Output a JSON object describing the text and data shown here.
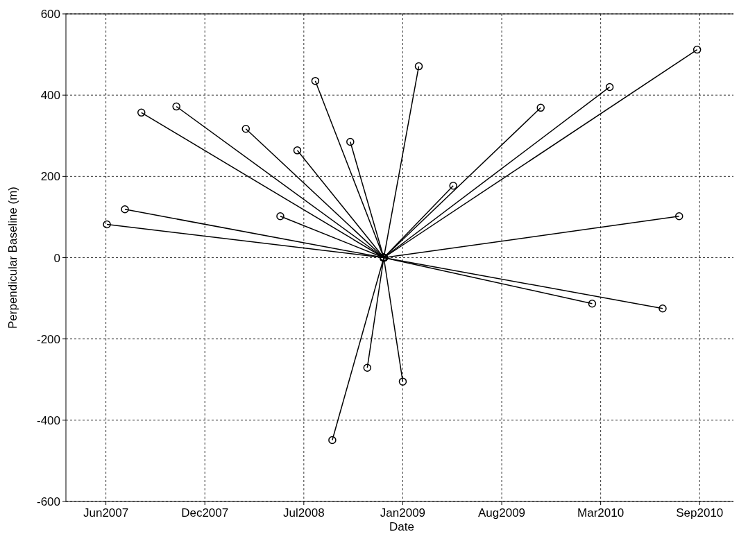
{
  "chart_data": {
    "type": "line",
    "xlabel": "Date",
    "ylabel": "Perpendicular Baseline (m)",
    "xlim": [
      "2007-03-27",
      "2010-11-30"
    ],
    "xticks": [
      {
        "value": "2007-06-15",
        "label": "Jun2007"
      },
      {
        "value": "2007-12-30",
        "label": "Dec2007"
      },
      {
        "value": "2008-07-15",
        "label": "Jul2008"
      },
      {
        "value": "2009-01-29",
        "label": "Jan2009"
      },
      {
        "value": "2009-08-15",
        "label": "Aug2009"
      },
      {
        "value": "2010-03-01",
        "label": "Mar2010"
      },
      {
        "value": "2010-09-15",
        "label": "Sep2010"
      }
    ],
    "ylim": [
      -600,
      600
    ],
    "yticks": [
      -600,
      -400,
      -200,
      0,
      200,
      400,
      600
    ],
    "grid": true,
    "marker": "circle",
    "line_style": "solid",
    "series": [
      {
        "color": "#000000",
        "x": [
          "2008-12-22",
          "2007-06-17"
        ],
        "values": [
          0,
          82
        ]
      },
      {
        "color": "#000000",
        "x": [
          "2008-12-22",
          "2007-07-23"
        ],
        "values": [
          0,
          119
        ]
      },
      {
        "color": "#000000",
        "x": [
          "2008-12-22",
          "2007-08-25"
        ],
        "values": [
          0,
          357
        ]
      },
      {
        "color": "#000000",
        "x": [
          "2008-12-22",
          "2007-11-03"
        ],
        "values": [
          0,
          372
        ]
      },
      {
        "color": "#000000",
        "x": [
          "2008-12-22",
          "2008-03-21"
        ],
        "values": [
          0,
          317
        ]
      },
      {
        "color": "#000000",
        "x": [
          "2008-12-22",
          "2008-05-29"
        ],
        "values": [
          0,
          102
        ]
      },
      {
        "color": "#000000",
        "x": [
          "2008-12-22",
          "2008-07-02"
        ],
        "values": [
          0,
          264
        ]
      },
      {
        "color": "#000000",
        "x": [
          "2008-12-22",
          "2008-08-07"
        ],
        "values": [
          0,
          435
        ]
      },
      {
        "color": "#000000",
        "x": [
          "2008-12-22",
          "2008-09-10"
        ],
        "values": [
          0,
          -449
        ]
      },
      {
        "color": "#000000",
        "x": [
          "2008-12-22",
          "2008-10-16"
        ],
        "values": [
          0,
          285
        ]
      },
      {
        "color": "#000000",
        "x": [
          "2008-12-22",
          "2008-11-19"
        ],
        "values": [
          0,
          -271
        ]
      },
      {
        "color": "#000000",
        "x": [
          "2008-12-22",
          "2009-01-29"
        ],
        "values": [
          0,
          -305
        ]
      },
      {
        "color": "#000000",
        "x": [
          "2008-12-22",
          "2009-03-02"
        ],
        "values": [
          0,
          471
        ]
      },
      {
        "color": "#000000",
        "x": [
          "2008-12-22",
          "2009-05-10"
        ],
        "values": [
          0,
          177
        ]
      },
      {
        "color": "#000000",
        "x": [
          "2008-12-22",
          "2009-11-01"
        ],
        "values": [
          0,
          369
        ]
      },
      {
        "color": "#000000",
        "x": [
          "2008-12-22",
          "2010-02-12"
        ],
        "values": [
          0,
          -113
        ]
      },
      {
        "color": "#000000",
        "x": [
          "2008-12-22",
          "2010-03-19"
        ],
        "values": [
          0,
          420
        ]
      },
      {
        "color": "#000000",
        "x": [
          "2008-12-22",
          "2010-07-03"
        ],
        "values": [
          0,
          -125
        ]
      },
      {
        "color": "#000000",
        "x": [
          "2008-12-22",
          "2010-08-05"
        ],
        "values": [
          0,
          102
        ]
      },
      {
        "color": "#000000",
        "x": [
          "2008-12-22",
          "2010-09-10"
        ],
        "values": [
          0,
          512
        ]
      }
    ]
  }
}
